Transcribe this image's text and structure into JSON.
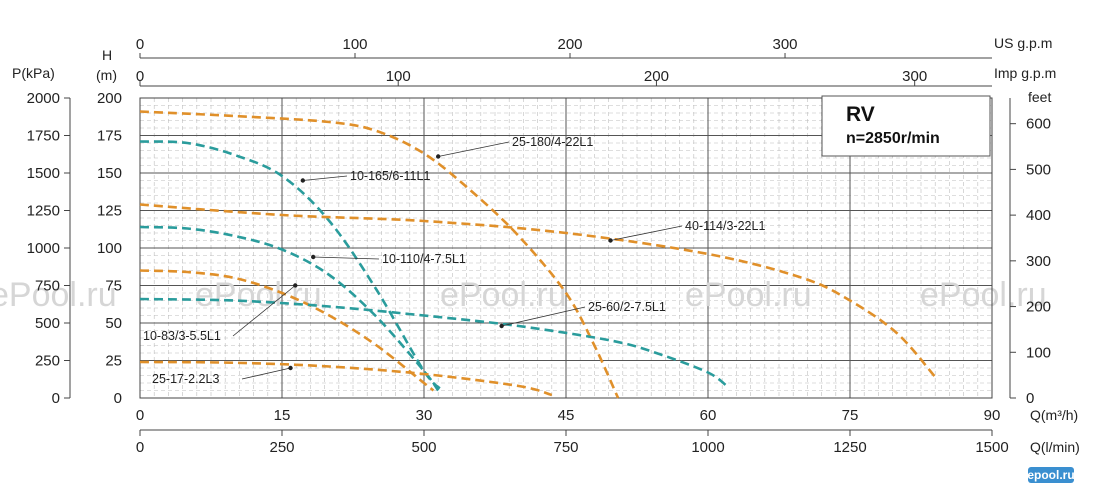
{
  "chart_data": {
    "type": "line",
    "info_box": {
      "title": "RV",
      "subtitle": "n=2850r/min"
    },
    "axes": {
      "x_primary": {
        "label": "Q(m³/h)",
        "range": [
          0,
          90
        ],
        "ticks": [
          0,
          15,
          30,
          45,
          60,
          75,
          90
        ]
      },
      "x_lpm": {
        "label": "Q(l/min)",
        "range": [
          0,
          1500
        ],
        "ticks": [
          0,
          250,
          500,
          750,
          1000,
          1250,
          1500
        ]
      },
      "x_us_gpm": {
        "label": "US g.p.m",
        "ticks": [
          0,
          100,
          200,
          300
        ]
      },
      "x_imp_gpm": {
        "label": "Imp g.p.m",
        "ticks": [
          0,
          100,
          200,
          300
        ]
      },
      "y_head_m": {
        "label_line1": "H",
        "label_line2": "(m)",
        "range": [
          0,
          200
        ],
        "ticks": [
          0,
          25,
          50,
          75,
          100,
          125,
          150,
          175,
          200
        ]
      },
      "y_pressure_kpa": {
        "label": "P(kPa)",
        "ticks": [
          0,
          250,
          500,
          750,
          1000,
          1250,
          1500,
          1750,
          2000
        ]
      },
      "y_feet": {
        "label": "feet",
        "ticks": [
          0,
          100,
          200,
          300,
          400,
          500,
          600
        ]
      }
    },
    "grid": true,
    "watermark": "ePool.ru",
    "logo": "epool.ru",
    "series": [
      {
        "name": "25-180/4-22L1",
        "color": "#e0902a",
        "x": [
          0,
          10,
          20,
          25,
          30,
          35,
          40,
          45,
          48,
          50.5
        ],
        "y": [
          191,
          188,
          184,
          178,
          163,
          138,
          108,
          70,
          35,
          0
        ],
        "label_at": [
          31.5,
          161
        ]
      },
      {
        "name": "10-165/6-11L1",
        "color": "#2a9c9c",
        "x": [
          0,
          5,
          10,
          15,
          20,
          25,
          30,
          32
        ],
        "y": [
          171,
          170,
          162,
          148,
          118,
          72,
          18,
          5
        ],
        "label_at": [
          17.2,
          145
        ]
      },
      {
        "name": "40-114/3-22L1",
        "color": "#e0902a",
        "x": [
          0,
          15,
          30,
          45,
          60,
          70,
          75,
          80,
          84
        ],
        "y": [
          129,
          122,
          118,
          110,
          96,
          80,
          65,
          43,
          14
        ],
        "label_at": [
          49.7,
          105
        ]
      },
      {
        "name": "10-110/4-7.5L1",
        "color": "#2a9c9c",
        "x": [
          0,
          5,
          10,
          15,
          20,
          25,
          30,
          31.5
        ],
        "y": [
          114,
          113,
          108,
          99,
          82,
          54,
          18,
          5
        ],
        "label_at": [
          18.3,
          94
        ]
      },
      {
        "name": "10-83/3-5.5L1",
        "color": "#e0902a",
        "x": [
          0,
          5,
          10,
          15,
          20,
          25,
          30,
          31
        ],
        "y": [
          85,
          84,
          80,
          70,
          55,
          35,
          10,
          5
        ],
        "label_at": [
          16.4,
          75
        ]
      },
      {
        "name": "25-60/2-7.5L1",
        "color": "#2a9c9c",
        "x": [
          0,
          10,
          20,
          30,
          40,
          50,
          55,
          60,
          62
        ],
        "y": [
          66,
          65,
          61,
          55,
          48,
          38,
          29,
          17,
          8
        ],
        "label_at": [
          38.2,
          48
        ]
      },
      {
        "name": "25-17-2.2L3",
        "color": "#e0902a",
        "x": [
          0,
          10,
          20,
          30,
          40,
          43.5
        ],
        "y": [
          24,
          23.5,
          21,
          16,
          8,
          2
        ],
        "label_at": [
          15.9,
          20
        ]
      }
    ]
  }
}
